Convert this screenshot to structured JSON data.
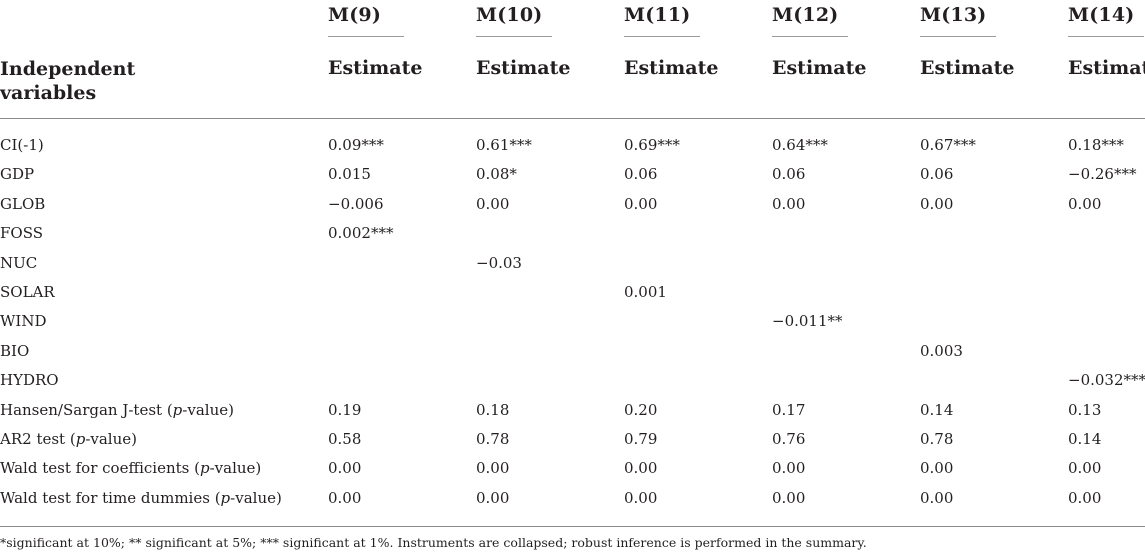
{
  "table": {
    "stub_header": "Independent variables",
    "stub_header_lines": [
      "Independent",
      "variables"
    ],
    "models": [
      {
        "name": "M(9)",
        "sub": "Estimate"
      },
      {
        "name": "M(10)",
        "sub": "Estimate"
      },
      {
        "name": "M(11)",
        "sub": "Estimate"
      },
      {
        "name": "M(12)",
        "sub": "Estimate"
      },
      {
        "name": "M(13)",
        "sub": "Estimate"
      },
      {
        "name": "M(14)",
        "sub": "Estimate"
      }
    ],
    "rows": [
      {
        "label": "CI(-1)",
        "values": [
          "0.09***",
          "0.61***",
          "0.69***",
          "0.64***",
          "0.67***",
          "0.18***"
        ]
      },
      {
        "label": "GDP",
        "values": [
          "0.015",
          "0.08*",
          "0.06",
          "0.06",
          "0.06",
          "−0.26***"
        ]
      },
      {
        "label": "GLOB",
        "values": [
          "−0.006",
          "0.00",
          "0.00",
          "0.00",
          "0.00",
          "0.00"
        ]
      },
      {
        "label": "FOSS",
        "values": [
          "0.002***",
          "",
          "",
          "",
          "",
          ""
        ]
      },
      {
        "label": "NUC",
        "values": [
          "",
          "−0.03",
          "",
          "",
          "",
          ""
        ]
      },
      {
        "label": "SOLAR",
        "values": [
          "",
          "",
          "0.001",
          "",
          "",
          ""
        ]
      },
      {
        "label": "WIND",
        "values": [
          "",
          "",
          "",
          "−0.011**",
          "",
          ""
        ]
      },
      {
        "label": "BIO",
        "values": [
          "",
          "",
          "",
          "",
          "0.003",
          ""
        ]
      },
      {
        "label": "HYDRO",
        "values": [
          "",
          "",
          "",
          "",
          "",
          "−0.032***"
        ]
      },
      {
        "label_parts": [
          "Hansen/Sargan J-test (",
          "p",
          "-value)"
        ],
        "values": [
          "0.19",
          "0.18",
          "0.20",
          "0.17",
          "0.14",
          "0.13"
        ]
      },
      {
        "label_parts": [
          "AR2 test (",
          "p",
          "-value)"
        ],
        "values": [
          "0.58",
          "0.78",
          "0.79",
          "0.76",
          "0.78",
          "0.14"
        ]
      },
      {
        "label_parts": [
          "Wald test for coefficients (",
          "p",
          "-value)"
        ],
        "values": [
          "0.00",
          "0.00",
          "0.00",
          "0.00",
          "0.00",
          "0.00"
        ]
      },
      {
        "label_parts": [
          "Wald test for time dummies (",
          "p",
          "-value)"
        ],
        "values": [
          "0.00",
          "0.00",
          "0.00",
          "0.00",
          "0.00",
          "0.00"
        ]
      }
    ]
  },
  "footnote": "*significant at 10%; ** significant at 5%; *** significant at 1%. Instruments are collapsed; robust inference is performed in the summary."
}
